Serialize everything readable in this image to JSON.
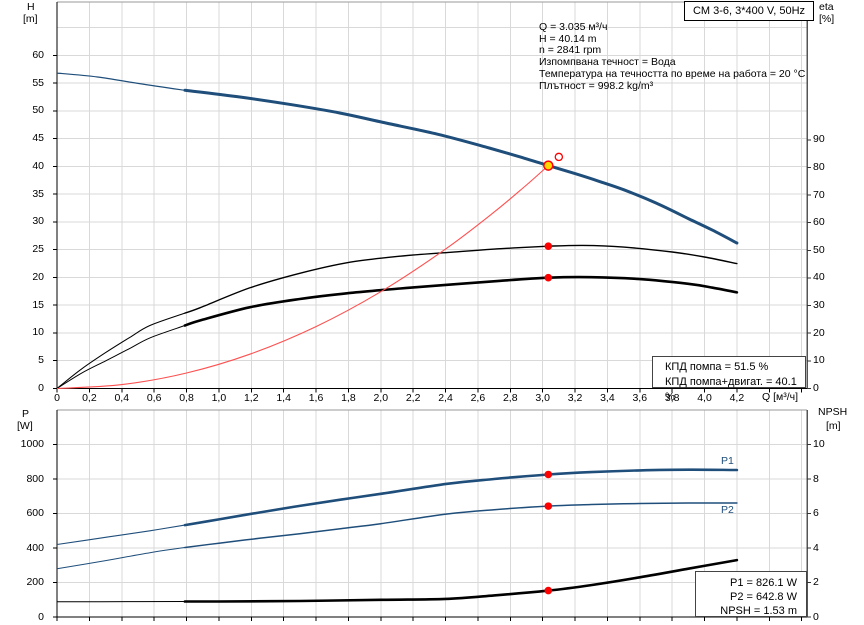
{
  "pump_title": "CM 3-6, 3*400 V, 50Hz",
  "info_lines": [
    "Q = 3.035 м³/ч",
    "H = 40.14 m",
    "n = 2841 rpm",
    "Изпомпвана течност = Вода",
    "Температура на течността по време на работа = 20 °C",
    "Плътност = 998.2 kg/m³"
  ],
  "colors": {
    "curve_blue": "#1f4e7b",
    "curve_black": "#000000",
    "system_red": "#ff5050",
    "dot_red": "#ff0000",
    "duty_yellow": "#ffd800",
    "grid": "#d9d9d9",
    "border": "#999999",
    "axis": "#000000",
    "right_axis": "#555555"
  },
  "chart_data": [
    {
      "type": "line",
      "x_axis": {
        "label": "Q [м³/ч]",
        "min": 0,
        "max": 4.633,
        "tick_step": 0.2,
        "tick_labels": [
          "0",
          "0,2",
          "0,4",
          "0,6",
          "0,8",
          "1,0",
          "1,2",
          "1,4",
          "1,6",
          "1,8",
          "2,0",
          "2,2",
          "2,4",
          "2,6",
          "2,8",
          "3,0",
          "3,2",
          "3,4",
          "3,6",
          "3,8",
          "4,0",
          "4,2"
        ]
      },
      "y_left": {
        "label": "H",
        "unit": "[m]",
        "min": 0,
        "max": 69.6,
        "tick_step": 5,
        "tick_labels": [
          "0",
          "5",
          "10",
          "15",
          "20",
          "25",
          "30",
          "35",
          "40",
          "45",
          "50",
          "55",
          "60"
        ]
      },
      "y_right": {
        "label": "eta",
        "unit": "[%]",
        "min": 0,
        "max": 139.9,
        "tick_step": 10,
        "tick_labels": [
          "0",
          "10",
          "20",
          "30",
          "40",
          "50",
          "60",
          "70",
          "80",
          "90"
        ]
      },
      "series": [
        {
          "name": "pump-curve",
          "axis": "left",
          "color_key": "curve_blue",
          "thin_width": 1.2,
          "thick_width": 3,
          "thick_from": 0.79,
          "points": [
            [
              0,
              56.8
            ],
            [
              0.25,
              56.1
            ],
            [
              0.51,
              54.9
            ],
            [
              0.79,
              53.7
            ],
            [
              1.13,
              52.5
            ],
            [
              1.45,
              51.1
            ],
            [
              1.75,
              49.6
            ],
            [
              2.0,
              48.0
            ],
            [
              2.35,
              45.8
            ],
            [
              2.67,
              43.3
            ],
            [
              2.85,
              41.8
            ],
            [
              3.035,
              40.14
            ],
            [
              3.2,
              38.7
            ],
            [
              3.35,
              37.3
            ],
            [
              3.5,
              35.8
            ],
            [
              3.7,
              33.4
            ],
            [
              3.9,
              30.6
            ],
            [
              4.05,
              28.5
            ],
            [
              4.2,
              26.2
            ]
          ]
        },
        {
          "name": "efficiency-pump-curve",
          "axis": "right",
          "color_key": "curve_black",
          "thin_width": 1,
          "thick_width": 1.4,
          "thick_from": 0.79,
          "points": [
            [
              0,
              0
            ],
            [
              0.15,
              7
            ],
            [
              0.3,
              13
            ],
            [
              0.45,
              18.5
            ],
            [
              0.574,
              22.8
            ],
            [
              0.79,
              27.3
            ],
            [
              0.883,
              29.2
            ],
            [
              1.19,
              36.4
            ],
            [
              1.5,
              41.7
            ],
            [
              1.81,
              45.7
            ],
            [
              2.12,
              47.9
            ],
            [
              2.43,
              49.3
            ],
            [
              2.74,
              50.6
            ],
            [
              3.035,
              51.5
            ],
            [
              3.25,
              51.8
            ],
            [
              3.5,
              51.2
            ],
            [
              3.8,
              49.4
            ],
            [
              4.0,
              47.6
            ],
            [
              4.2,
              45.2
            ]
          ]
        },
        {
          "name": "efficiency-pump-motor-curve",
          "axis": "right",
          "color_key": "curve_black",
          "thin_width": 1,
          "thick_width": 2.6,
          "thick_from": 0.79,
          "points": [
            [
              0,
              0
            ],
            [
              0.15,
              5.5
            ],
            [
              0.3,
              10
            ],
            [
              0.45,
              14.5
            ],
            [
              0.574,
              18.3
            ],
            [
              0.79,
              22.8
            ],
            [
              0.883,
              24.6
            ],
            [
              1.19,
              29.4
            ],
            [
              1.5,
              32.4
            ],
            [
              1.81,
              34.6
            ],
            [
              2.12,
              36.2
            ],
            [
              2.43,
              37.6
            ],
            [
              2.74,
              39.0
            ],
            [
              3.035,
              40.1
            ],
            [
              3.3,
              40.3
            ],
            [
              3.6,
              39.6
            ],
            [
              3.9,
              37.9
            ],
            [
              4.05,
              36.5
            ],
            [
              4.2,
              34.8
            ]
          ]
        },
        {
          "name": "system-curve",
          "axis": "left",
          "color_key": "system_red",
          "thin_width": 1.1,
          "points": [
            [
              0,
              0
            ],
            [
              0.4,
              0.7
            ],
            [
              0.8,
              2.79
            ],
            [
              1.2,
              6.27
            ],
            [
              1.6,
              11.15
            ],
            [
              2.0,
              17.43
            ],
            [
              2.4,
              25.1
            ],
            [
              2.7,
              31.77
            ],
            [
              2.9,
              36.65
            ],
            [
              3.035,
              40.14
            ]
          ]
        }
      ],
      "markers": [
        {
          "name": "duty-point",
          "axis": "left",
          "q": 3.035,
          "v": 40.14,
          "style": "duty"
        },
        {
          "name": "requested-duty-point",
          "axis": "left",
          "q": 3.1,
          "v": 41.7,
          "style": "hollow"
        },
        {
          "name": "efficiency-pump-dot",
          "axis": "right",
          "q": 3.035,
          "v": 51.5,
          "style": "dot"
        },
        {
          "name": "efficiency-pump-motor-dot",
          "axis": "right",
          "q": 3.035,
          "v": 40.1,
          "style": "dot"
        }
      ],
      "legend_lines": [
        "КПД помпа = 51.5 %",
        "КПД помпа+двигат. = 40.1 %"
      ]
    },
    {
      "type": "line",
      "x_axis": {
        "label": "",
        "min": 0,
        "max": 4.633,
        "tick_step": 0.2,
        "tick_labels": []
      },
      "y_left": {
        "label": "P",
        "unit": "[W]",
        "min": 0,
        "max": 1200,
        "tick_step": 200,
        "tick_labels": [
          "0",
          "200",
          "400",
          "600",
          "800",
          "1000"
        ]
      },
      "y_right": {
        "label": "NPSH",
        "unit": "[m]",
        "min": 0,
        "max": 12,
        "tick_step": 2,
        "tick_labels": [
          "0",
          "2",
          "4",
          "6",
          "8",
          "10"
        ]
      },
      "series": [
        {
          "name": "p1-curve",
          "axis": "left",
          "color_key": "curve_blue",
          "thin_width": 1.1,
          "thick_width": 2.6,
          "thick_from": 0.79,
          "points": [
            [
              0,
              420
            ],
            [
              0.3,
              462
            ],
            [
              0.574,
              500
            ],
            [
              0.79,
              533
            ],
            [
              1.0,
              566
            ],
            [
              1.25,
              606
            ],
            [
              1.5,
              644
            ],
            [
              1.75,
              680
            ],
            [
              2.0,
              714
            ],
            [
              2.41,
              772
            ],
            [
              2.7,
              800
            ],
            [
              3.035,
              826
            ],
            [
              3.3,
              840
            ],
            [
              3.6,
              850
            ],
            [
              3.9,
              854
            ],
            [
              4.2,
              852
            ]
          ]
        },
        {
          "name": "p2-curve",
          "axis": "left",
          "color_key": "curve_blue",
          "thin_width": 1,
          "thick_width": 1.5,
          "thick_from": 0.79,
          "points": [
            [
              0,
              280
            ],
            [
              0.3,
              327
            ],
            [
              0.574,
              373
            ],
            [
              0.79,
              403
            ],
            [
              1.0,
              428
            ],
            [
              1.25,
              456
            ],
            [
              1.5,
              483
            ],
            [
              1.75,
              512
            ],
            [
              2.0,
              541
            ],
            [
              2.41,
              597
            ],
            [
              2.7,
              622
            ],
            [
              3.035,
              643
            ],
            [
              3.3,
              652
            ],
            [
              3.6,
              658
            ],
            [
              3.9,
              661
            ],
            [
              4.2,
              661
            ]
          ]
        },
        {
          "name": "npsh-curve",
          "axis": "right",
          "color_key": "curve_black",
          "thin_width": 1,
          "thick_width": 2.6,
          "thick_from": 0.79,
          "points": [
            [
              0,
              0.88
            ],
            [
              0.5,
              0.89
            ],
            [
              0.79,
              0.9
            ],
            [
              1.0,
              0.9
            ],
            [
              1.5,
              0.93
            ],
            [
              2.0,
              1.0
            ],
            [
              2.4,
              1.05
            ],
            [
              2.7,
              1.25
            ],
            [
              3.035,
              1.53
            ],
            [
              3.3,
              1.85
            ],
            [
              3.6,
              2.3
            ],
            [
              3.9,
              2.8
            ],
            [
              4.2,
              3.3
            ]
          ]
        }
      ],
      "markers": [
        {
          "name": "p1-dot",
          "axis": "left",
          "q": 3.035,
          "v": 826.1,
          "style": "dot"
        },
        {
          "name": "p2-dot",
          "axis": "left",
          "q": 3.035,
          "v": 642.8,
          "style": "dot"
        },
        {
          "name": "npsh-dot",
          "axis": "right",
          "q": 3.035,
          "v": 1.53,
          "style": "dot"
        }
      ],
      "curve_labels": [
        "P1",
        "P2"
      ],
      "legend_lines": [
        "P1 = 826.1 W",
        "P2 = 642.8 W",
        "NPSH = 1.53 m"
      ]
    }
  ]
}
